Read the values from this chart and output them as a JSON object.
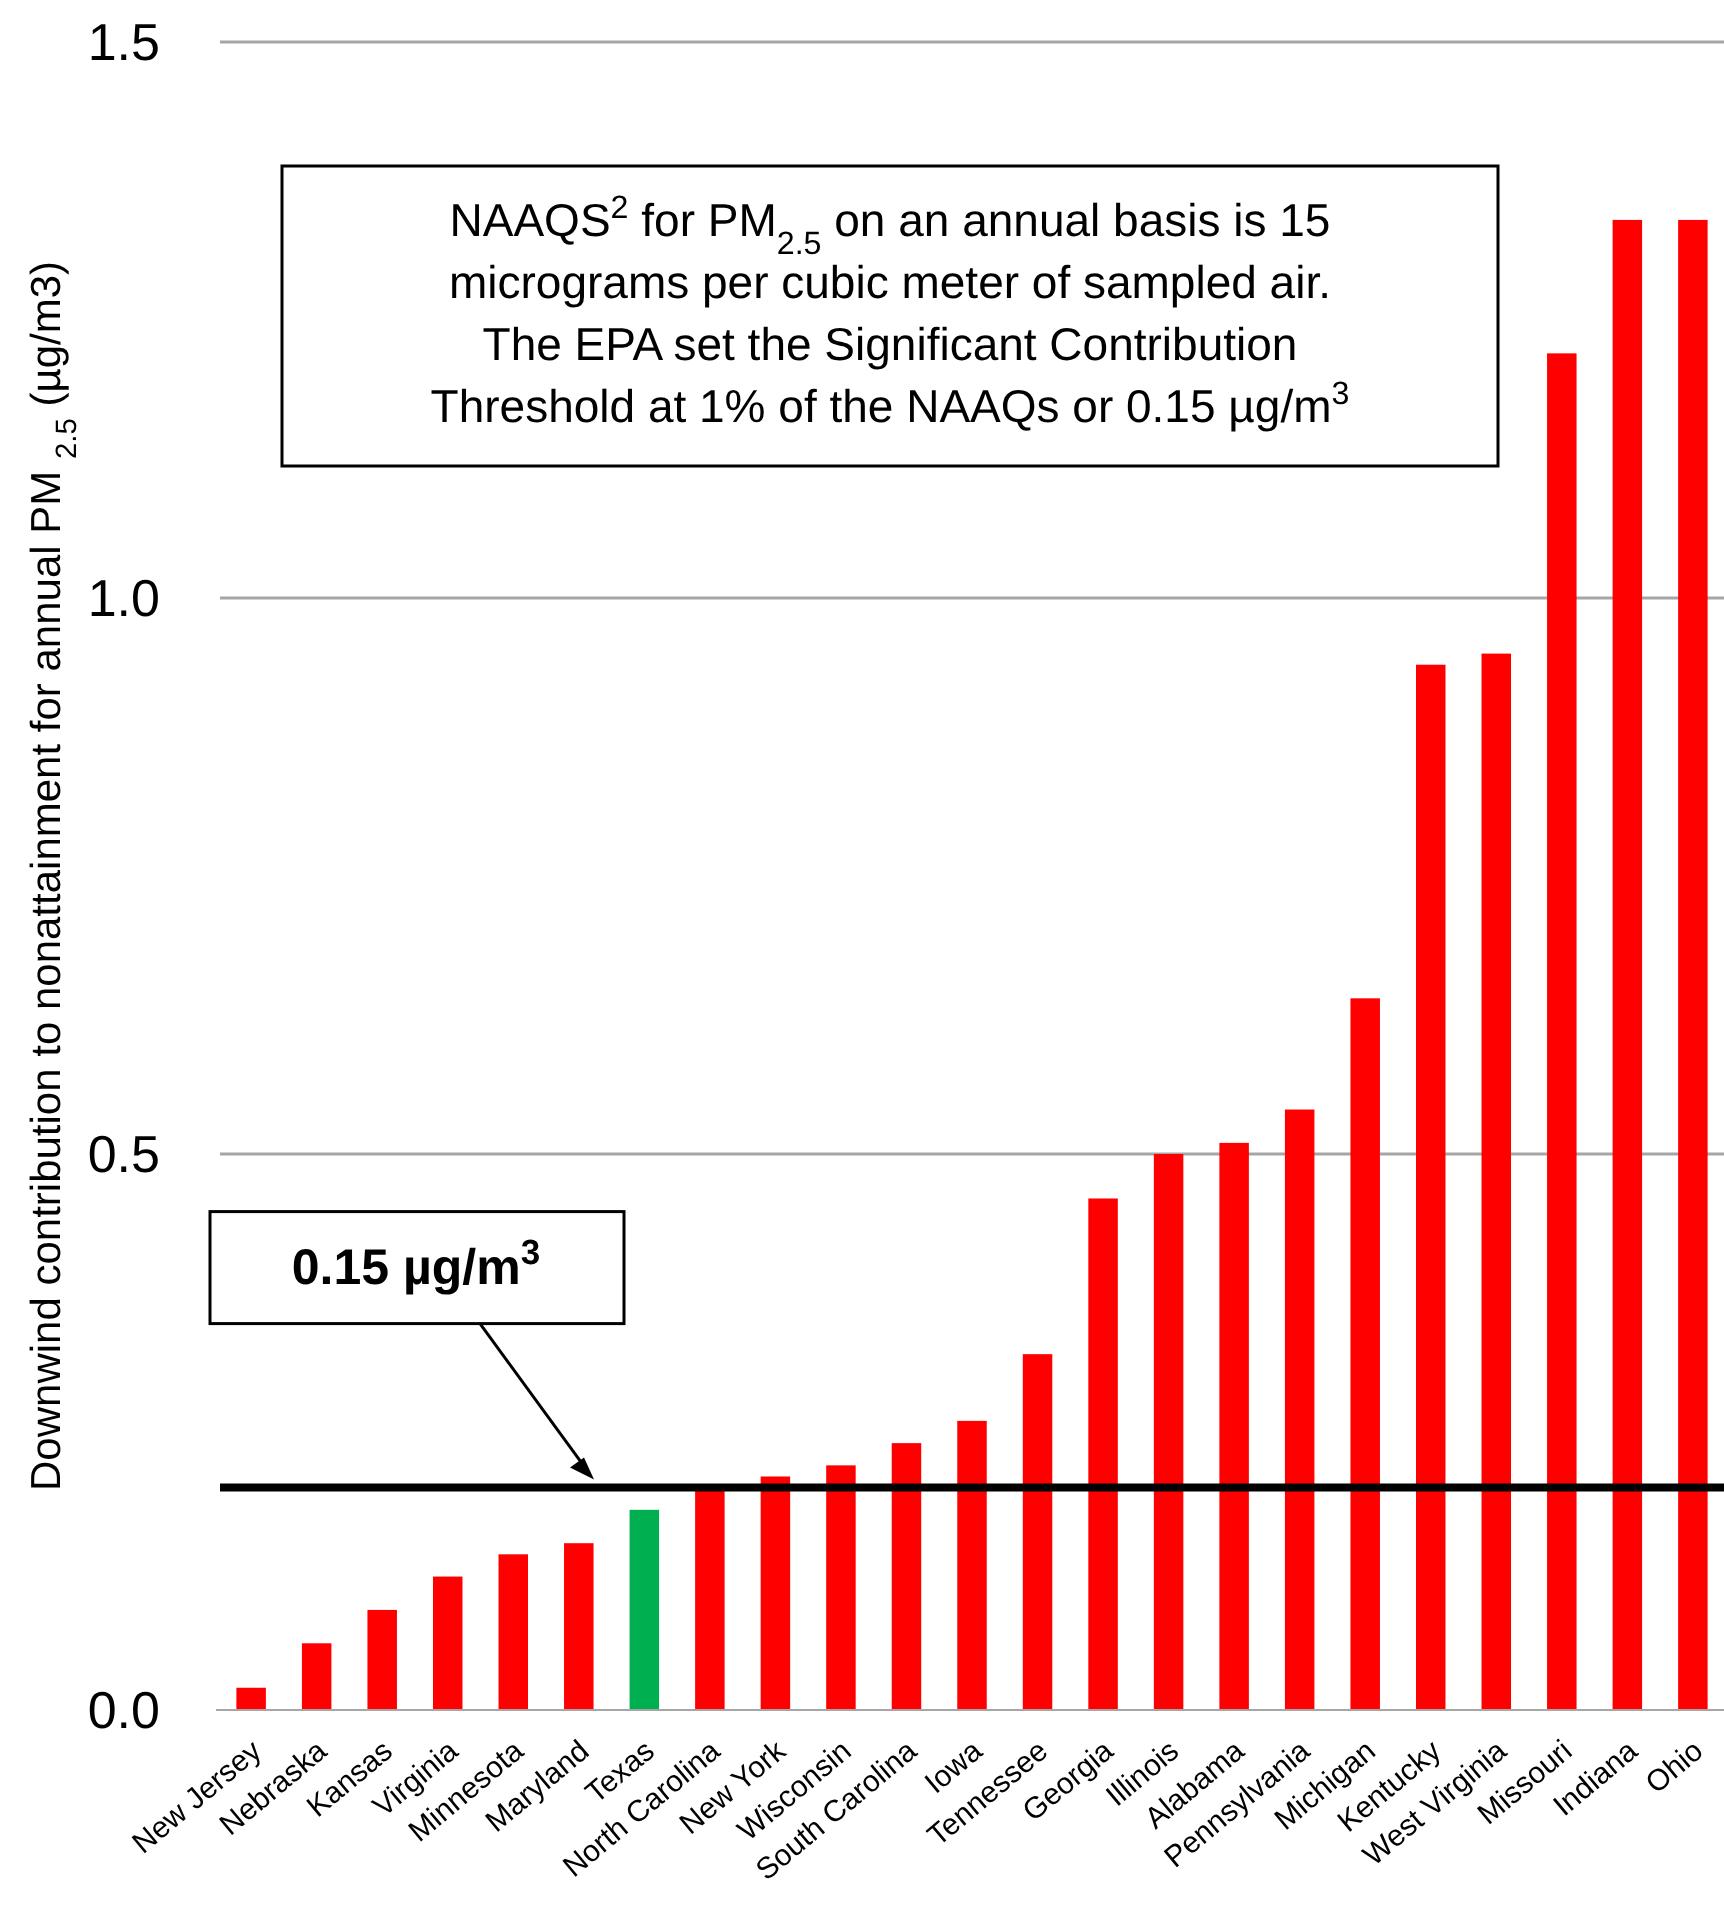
{
  "chart_data": {
    "type": "bar",
    "ylabel": "Downwind contribution to nonattainment for annual PM $_{2.5}$ (µg/m3)",
    "categories": [
      "New Jersey",
      "Nebraska",
      "Kansas",
      "Virginia",
      "Minnesota",
      "Maryland",
      "Texas",
      "North Carolina",
      "New York",
      "Wisconsin",
      "South Carolina",
      "Iowa",
      "Tennessee",
      "Georgia",
      "Illinois",
      "Alabama",
      "Pennsylvania",
      "Michigan",
      "Kentucky",
      "West Virginia",
      "Missouri",
      "Indiana",
      "Ohio"
    ],
    "values": [
      0.02,
      0.06,
      0.09,
      0.12,
      0.14,
      0.15,
      0.18,
      0.2,
      0.21,
      0.22,
      0.24,
      0.26,
      0.32,
      0.46,
      0.5,
      0.51,
      0.54,
      0.64,
      0.94,
      0.95,
      1.22,
      1.34,
      1.34
    ],
    "colors": [
      "#ff0000",
      "#ff0000",
      "#ff0000",
      "#ff0000",
      "#ff0000",
      "#ff0000",
      "#00b050",
      "#ff0000",
      "#ff0000",
      "#ff0000",
      "#ff0000",
      "#ff0000",
      "#ff0000",
      "#ff0000",
      "#ff0000",
      "#ff0000",
      "#ff0000",
      "#ff0000",
      "#ff0000",
      "#ff0000",
      "#ff0000",
      "#ff0000",
      "#ff0000"
    ],
    "ylim": [
      0,
      1.5
    ],
    "yticks": [
      {
        "value": 0,
        "label": "0.0"
      },
      {
        "value": 0.5,
        "label": "0.5"
      },
      {
        "value": 1,
        "label": "1.0"
      },
      {
        "value": 1.5,
        "label": "1.5"
      }
    ],
    "grid": "y",
    "ref_lines": [
      {
        "axis": "y",
        "value": 0.2,
        "label": "0.15 µg/m$^{3}$",
        "color": "#000000"
      }
    ],
    "annotations": [
      "NAAQS$^{2}$ for PM$_{2.5}$ on an annual basis is 15\nmicrograms per cubic meter of sampled air.\nThe EPA set the Significant Contribution\nThreshold at 1% of the NAAQs or 0.15 µg/m$^{3}$"
    ]
  }
}
